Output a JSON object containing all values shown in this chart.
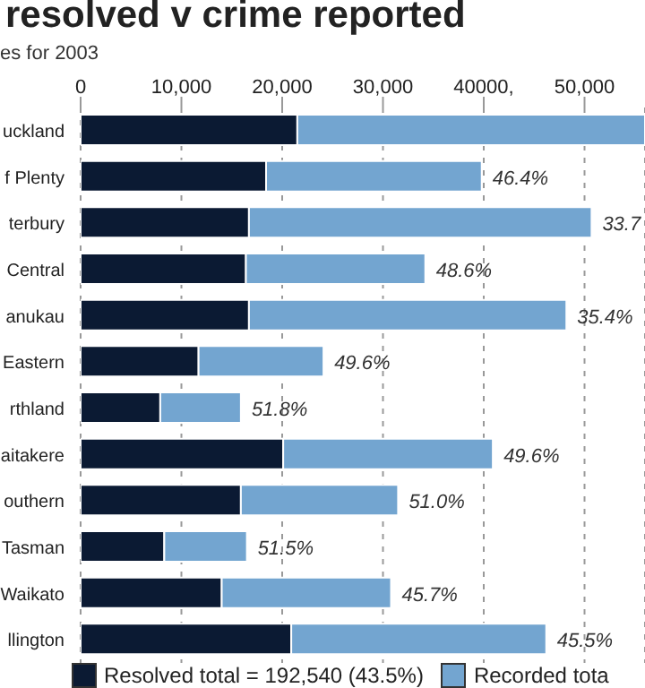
{
  "chart_data": {
    "type": "bar",
    "orientation": "horizontal",
    "stacked": true,
    "title": "resolved v crime reported",
    "subtitle": "es for 2003",
    "categories": [
      "uckland",
      "f Plenty",
      "terbury",
      "Central",
      "anukau",
      "Eastern",
      "rthland",
      "aitakere",
      "outhern",
      "Tasman",
      "Waikato",
      "llington"
    ],
    "series": [
      {
        "name": "Resolved total = 192,540 (43.5%)",
        "color": "#0b1a33",
        "values": [
          21500,
          18400,
          16700,
          16400,
          16700,
          11700,
          7900,
          20100,
          15900,
          8300,
          14000,
          20900
        ]
      },
      {
        "name": "Recorded tota",
        "color": "#73a5d0",
        "values": [
          34500,
          21400,
          34000,
          17800,
          31500,
          12400,
          8000,
          20800,
          15600,
          8200,
          16800,
          25300
        ]
      }
    ],
    "annotations": [
      {
        "text": "46.4%",
        "x": 39800,
        "y": "f Plenty"
      },
      {
        "text": "33.7",
        "x": 50700,
        "y": "terbury"
      },
      {
        "text": "48.6%",
        "x": 34200,
        "y": "Central"
      },
      {
        "text": "35.4%",
        "x": 48200,
        "y": "anukau"
      },
      {
        "text": "49.6%",
        "x": 24100,
        "y": "Eastern"
      },
      {
        "text": "51.8%",
        "x": 15900,
        "y": "rthland"
      },
      {
        "text": "49.6%",
        "x": 40900,
        "y": "aitakere"
      },
      {
        "text": "51.0%",
        "x": 31500,
        "y": "outhern"
      },
      {
        "text": "51.5%",
        "x": 16500,
        "y": "Tasman"
      },
      {
        "text": "45.7%",
        "x": 30800,
        "y": "Waikato"
      },
      {
        "text": "45.5%",
        "x": 46200,
        "y": "llington"
      }
    ],
    "xlim": [
      0,
      56000
    ],
    "xticks": [
      0,
      {
        "value": 10000,
        "label": "10,000"
      },
      {
        "value": 20000,
        "label": "20,000"
      },
      {
        "value": 30000,
        "label": "30,000"
      },
      {
        "value": 40000,
        "label": "40000,"
      },
      {
        "value": 50000,
        "label": "50,000"
      }
    ],
    "grid": "x",
    "legend": "bottom"
  }
}
